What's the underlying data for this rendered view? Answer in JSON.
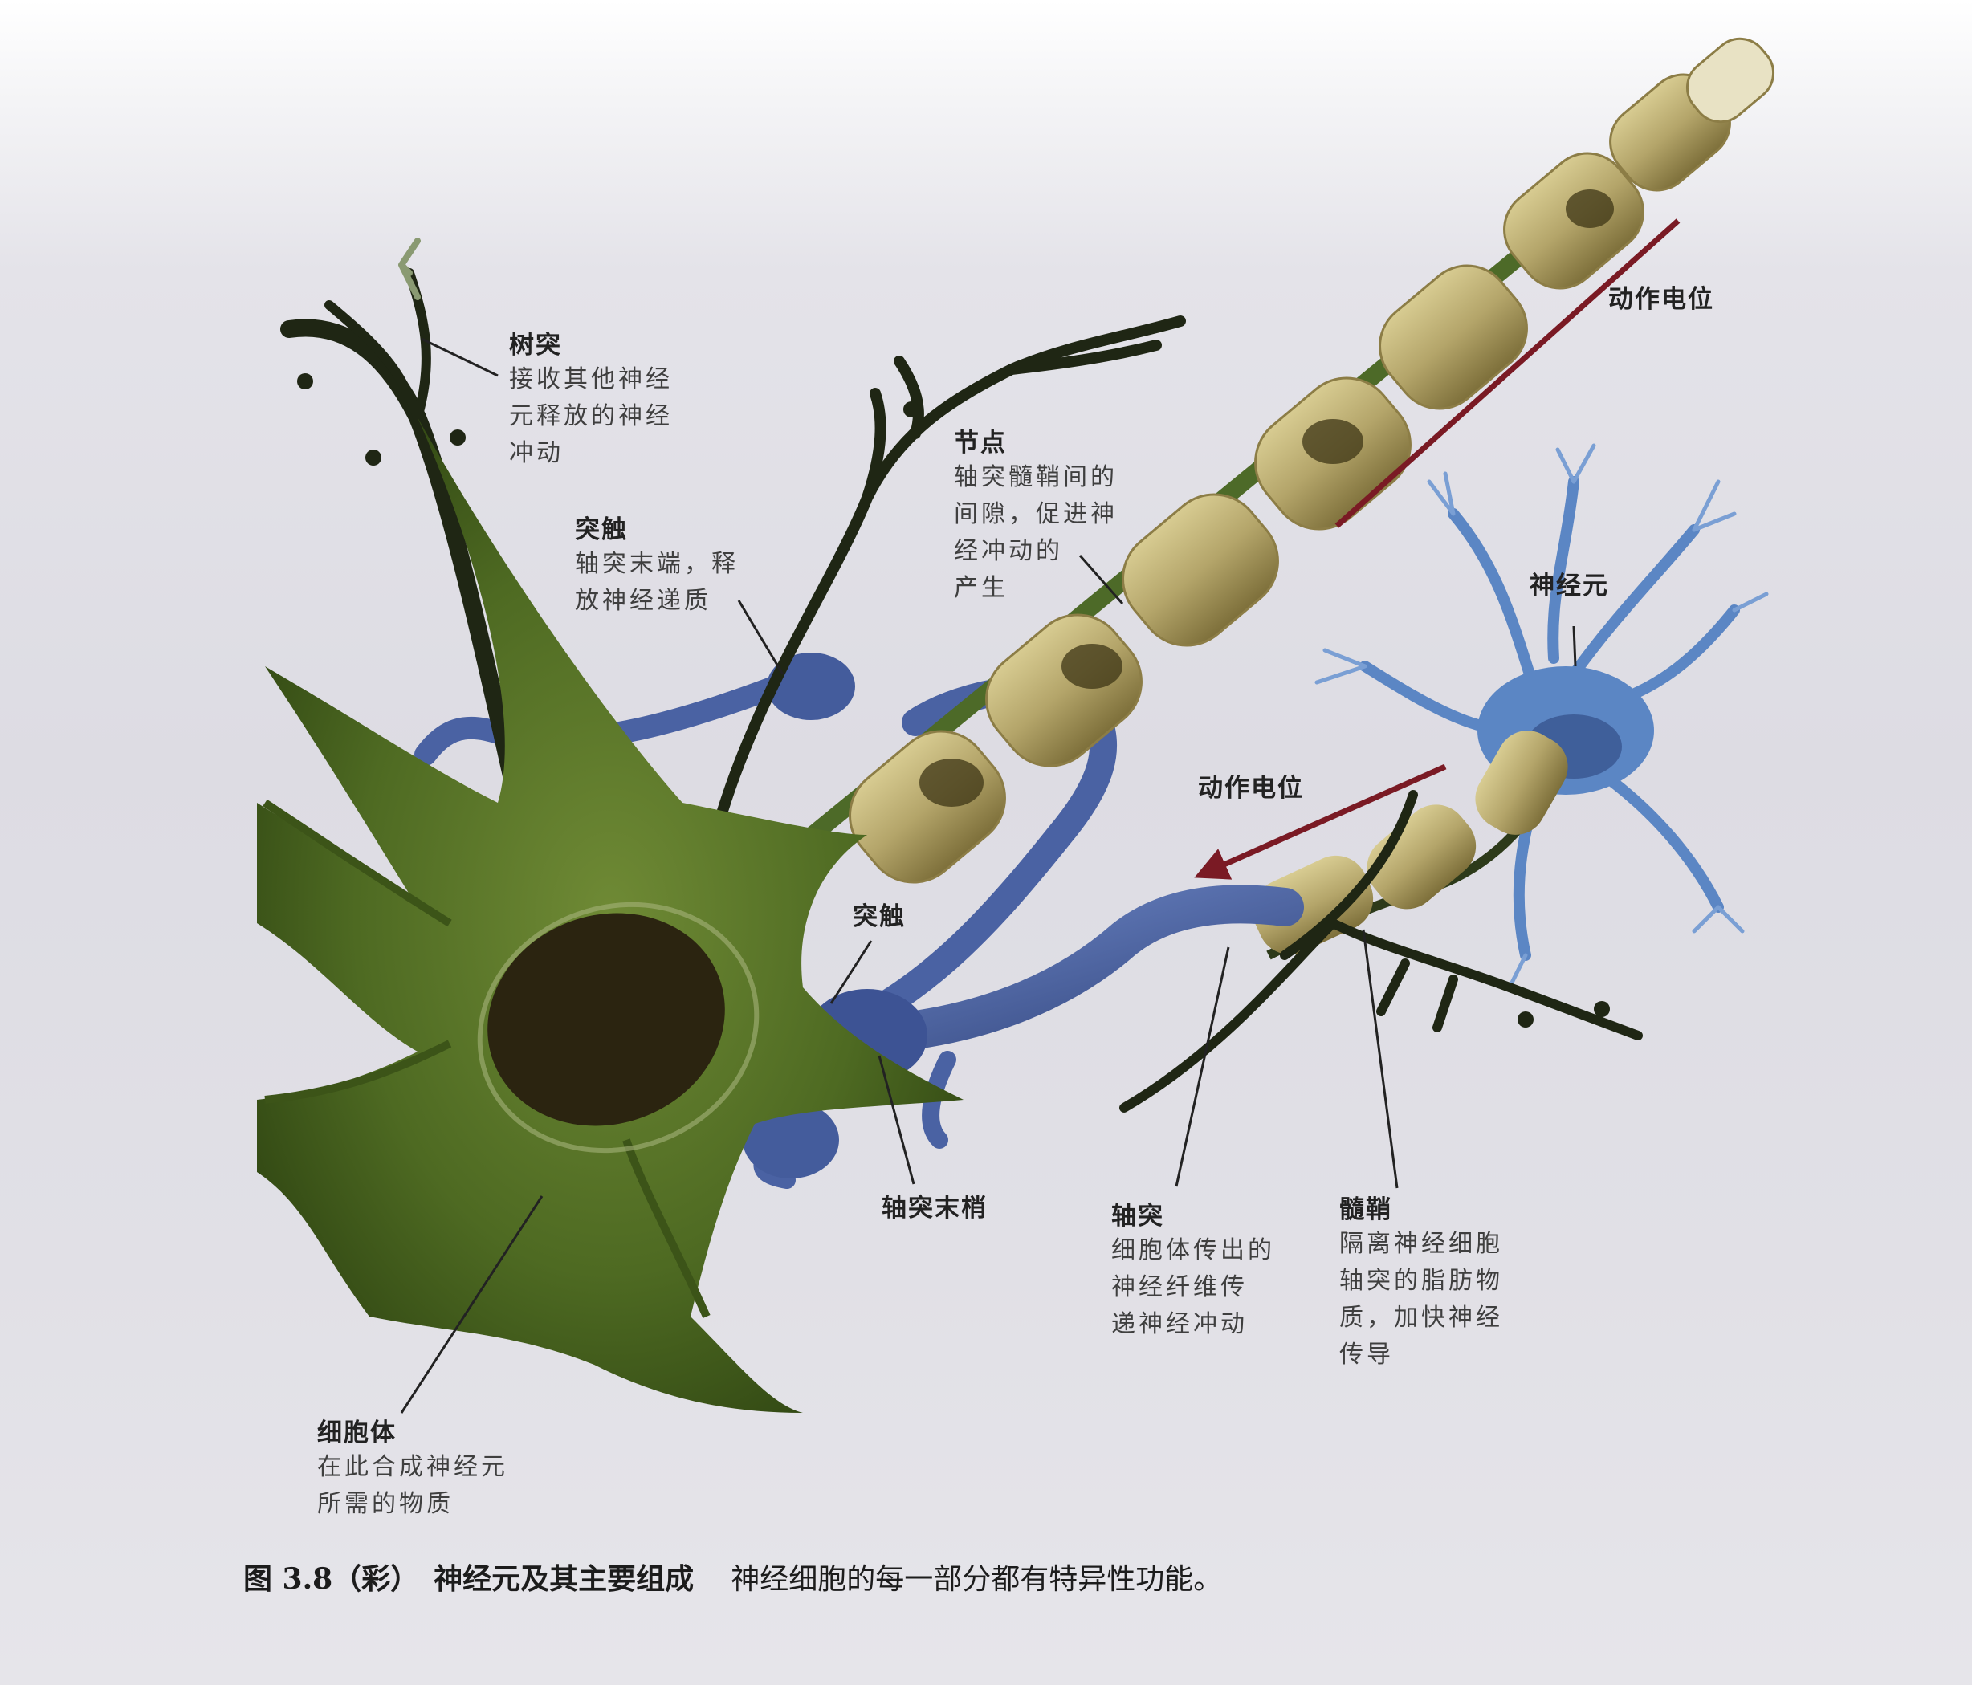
{
  "labels": {
    "dendrite": {
      "title": "树突",
      "lines": [
        "接收其他神经",
        "元释放的神经",
        "冲动"
      ]
    },
    "synapse_top": {
      "title": "突触",
      "lines": [
        "轴突末端，释",
        "放神经递质"
      ]
    },
    "node": {
      "title": "节点",
      "lines": [
        "轴突髓鞘间的",
        "间隙，促进神",
        "经冲动的",
        "产生"
      ]
    },
    "action_potential_top": {
      "title": "动作电位"
    },
    "neuron": {
      "title": "神经元"
    },
    "action_potential_mid": {
      "title": "动作电位"
    },
    "synapse_mid": {
      "title": "突触"
    },
    "axon_terminal": {
      "title": "轴突末梢"
    },
    "axon": {
      "title": "轴突",
      "lines": [
        "细胞体传出的",
        "神经纤维传",
        "递神经冲动"
      ]
    },
    "myelin": {
      "title": "髓鞘",
      "lines": [
        "隔离神经细胞",
        "轴突的脂肪物",
        "质，加快神经",
        "传导"
      ]
    },
    "cell_body": {
      "title": "细胞体",
      "lines": [
        "在此合成神经元",
        "所需的物质"
      ]
    }
  },
  "caption": {
    "figure": "图 3.8（彩）",
    "title": "神经元及其主要组成",
    "description": "神经细胞的每一部分都有特异性功能。"
  },
  "colors": {
    "cell_body": "#4e6a22",
    "cell_body_dark": "#2f4512",
    "myelin": "#b4a56a",
    "myelin_dark": "#7d6f3a",
    "terminal_blue": "#4a62a3",
    "neuron_blue": "#5b86c4",
    "arrow": "#7a1a24",
    "leader": "#222222"
  }
}
